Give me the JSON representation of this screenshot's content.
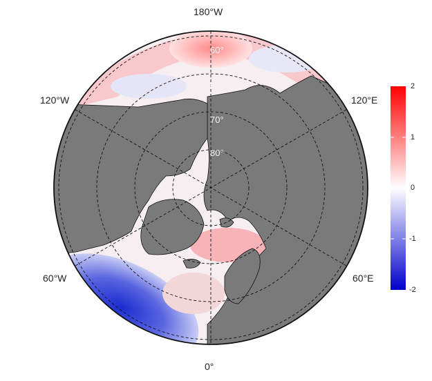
{
  "map": {
    "projection": "north-polar-stereographic",
    "lon_labels": {
      "top": "180°W",
      "left_upper": "120°W",
      "right_upper": "120°E",
      "left_lower": "60°W",
      "right_lower": "60°E",
      "bottom": "0°"
    },
    "lat_labels": [
      "60°",
      "70°",
      "80°"
    ],
    "land_color": "#7a7a7a",
    "graticule": "dashed"
  },
  "colorbar": {
    "ticks": [
      "2",
      "1",
      "0",
      "-1",
      "-2"
    ],
    "min": -2,
    "max": 2,
    "colors": {
      "high": "#ff0000",
      "mid": "#ffffff",
      "low": "#0000cc"
    }
  }
}
